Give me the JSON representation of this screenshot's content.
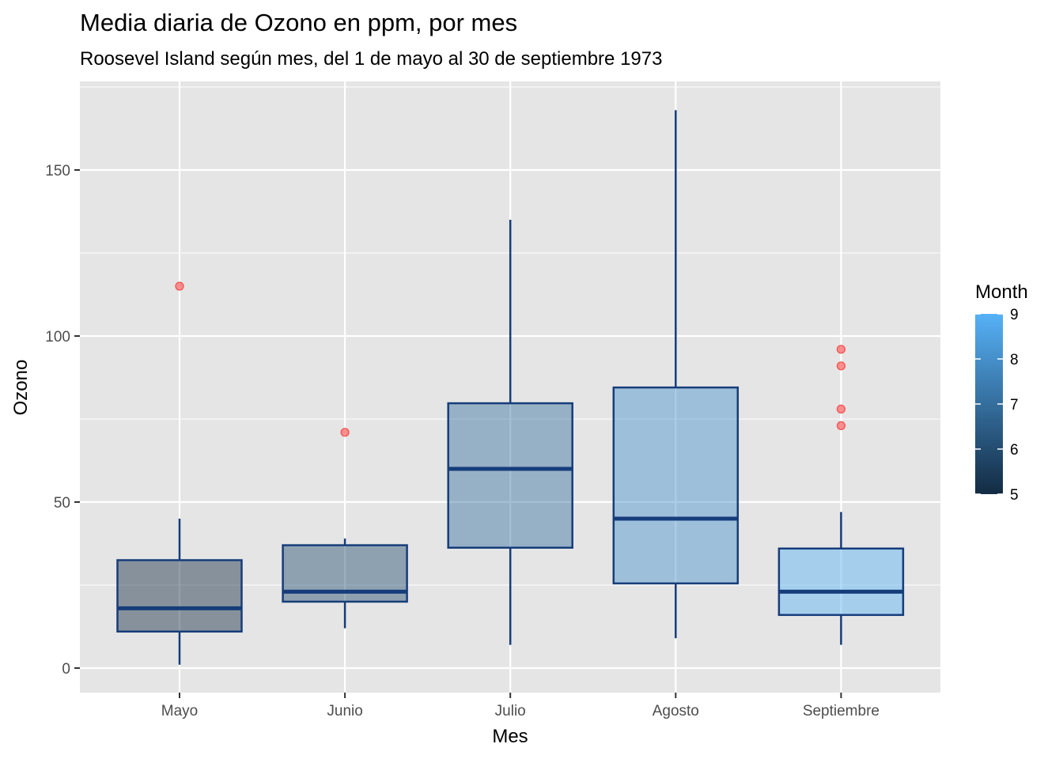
{
  "chart_data": {
    "type": "boxplot",
    "title": "Media diaria de Ozono en ppm, por mes",
    "subtitle": "Roosevel Island según mes, del 1 de mayo al 30 de septiembre 1973",
    "xlabel": "Mes",
    "ylabel": "Ozono",
    "ylim": [
      -7,
      168
    ],
    "yticks": [
      0,
      50,
      100,
      150
    ],
    "categories": [
      "Mayo",
      "Junio",
      "Julio",
      "Agosto",
      "Septiembre"
    ],
    "boxes": [
      {
        "category": "Mayo",
        "month": 5,
        "whisker_low": 1,
        "q1": 11,
        "median": 18,
        "q3": 32.5,
        "whisker_high": 45,
        "outliers": [
          115
        ]
      },
      {
        "category": "Junio",
        "month": 6,
        "whisker_low": 12,
        "q1": 20,
        "median": 23,
        "q3": 37,
        "whisker_high": 39,
        "outliers": [
          71
        ]
      },
      {
        "category": "Julio",
        "month": 7,
        "whisker_low": 7,
        "q1": 36.25,
        "median": 60,
        "q3": 79.75,
        "whisker_high": 135,
        "outliers": []
      },
      {
        "category": "Agosto",
        "month": 8,
        "whisker_low": 9,
        "q1": 25.5,
        "median": 45,
        "q3": 84.5,
        "whisker_high": 168,
        "outliers": []
      },
      {
        "category": "Septiembre",
        "month": 9,
        "whisker_low": 7,
        "q1": 16,
        "median": 23,
        "q3": 36,
        "whisker_high": 47,
        "outliers": [
          96,
          91,
          78,
          73
        ]
      }
    ],
    "legend": {
      "title": "Month",
      "range": [
        5,
        9
      ],
      "ticks": [
        5,
        6,
        7,
        8,
        9
      ],
      "color_low": "#132b43",
      "color_high": "#56b1f7",
      "placement": "right"
    },
    "colors": {
      "panel_background": "#e5e5e5",
      "grid": "#ffffff",
      "box_outline": "#163d7a",
      "outlier": "#ff6b6b"
    },
    "grid": true
  }
}
